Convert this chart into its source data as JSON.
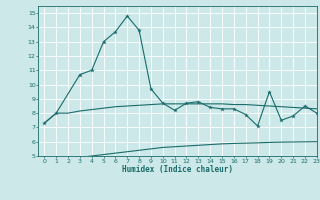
{
  "xlabel": "Humidex (Indice chaleur)",
  "xlim": [
    -0.5,
    23
  ],
  "ylim": [
    5,
    15.5
  ],
  "yticks": [
    5,
    6,
    7,
    8,
    9,
    10,
    11,
    12,
    13,
    14,
    15
  ],
  "xticks": [
    0,
    1,
    2,
    3,
    4,
    5,
    6,
    7,
    8,
    9,
    10,
    11,
    12,
    13,
    14,
    15,
    16,
    17,
    18,
    19,
    20,
    21,
    22,
    23
  ],
  "bg_color": "#cde8e8",
  "line_color": "#1a6b6b",
  "line1_x": [
    0,
    1,
    3,
    4,
    5,
    6,
    7,
    8,
    9,
    10,
    11,
    12,
    13,
    14,
    15,
    16,
    17,
    18,
    19,
    20,
    21,
    22,
    23
  ],
  "line1_y": [
    7.3,
    8.0,
    10.7,
    11.0,
    13.0,
    13.7,
    14.8,
    13.8,
    9.7,
    8.7,
    8.2,
    8.7,
    8.8,
    8.4,
    8.3,
    8.3,
    7.9,
    7.1,
    9.5,
    7.5,
    7.8,
    8.5,
    8.0
  ],
  "line2_x": [
    0,
    1,
    2,
    3,
    4,
    5,
    6,
    7,
    8,
    9,
    10,
    11,
    12,
    13,
    14,
    15,
    16,
    17,
    18,
    19,
    20,
    21,
    22,
    23
  ],
  "line2_y": [
    7.3,
    8.0,
    8.0,
    8.15,
    8.25,
    8.35,
    8.45,
    8.5,
    8.55,
    8.6,
    8.65,
    8.65,
    8.65,
    8.65,
    8.65,
    8.65,
    8.6,
    8.6,
    8.55,
    8.5,
    8.45,
    8.4,
    8.35,
    8.3
  ],
  "line3_x": [
    2,
    3,
    4,
    5,
    6,
    7,
    8,
    9,
    10,
    11,
    12,
    13,
    14,
    15,
    16,
    17,
    18,
    19,
    20,
    21,
    22,
    23
  ],
  "line3_y": [
    4.8,
    4.9,
    5.0,
    5.1,
    5.2,
    5.3,
    5.4,
    5.5,
    5.6,
    5.65,
    5.7,
    5.75,
    5.8,
    5.85,
    5.88,
    5.9,
    5.92,
    5.95,
    5.97,
    5.98,
    5.99,
    6.0
  ]
}
